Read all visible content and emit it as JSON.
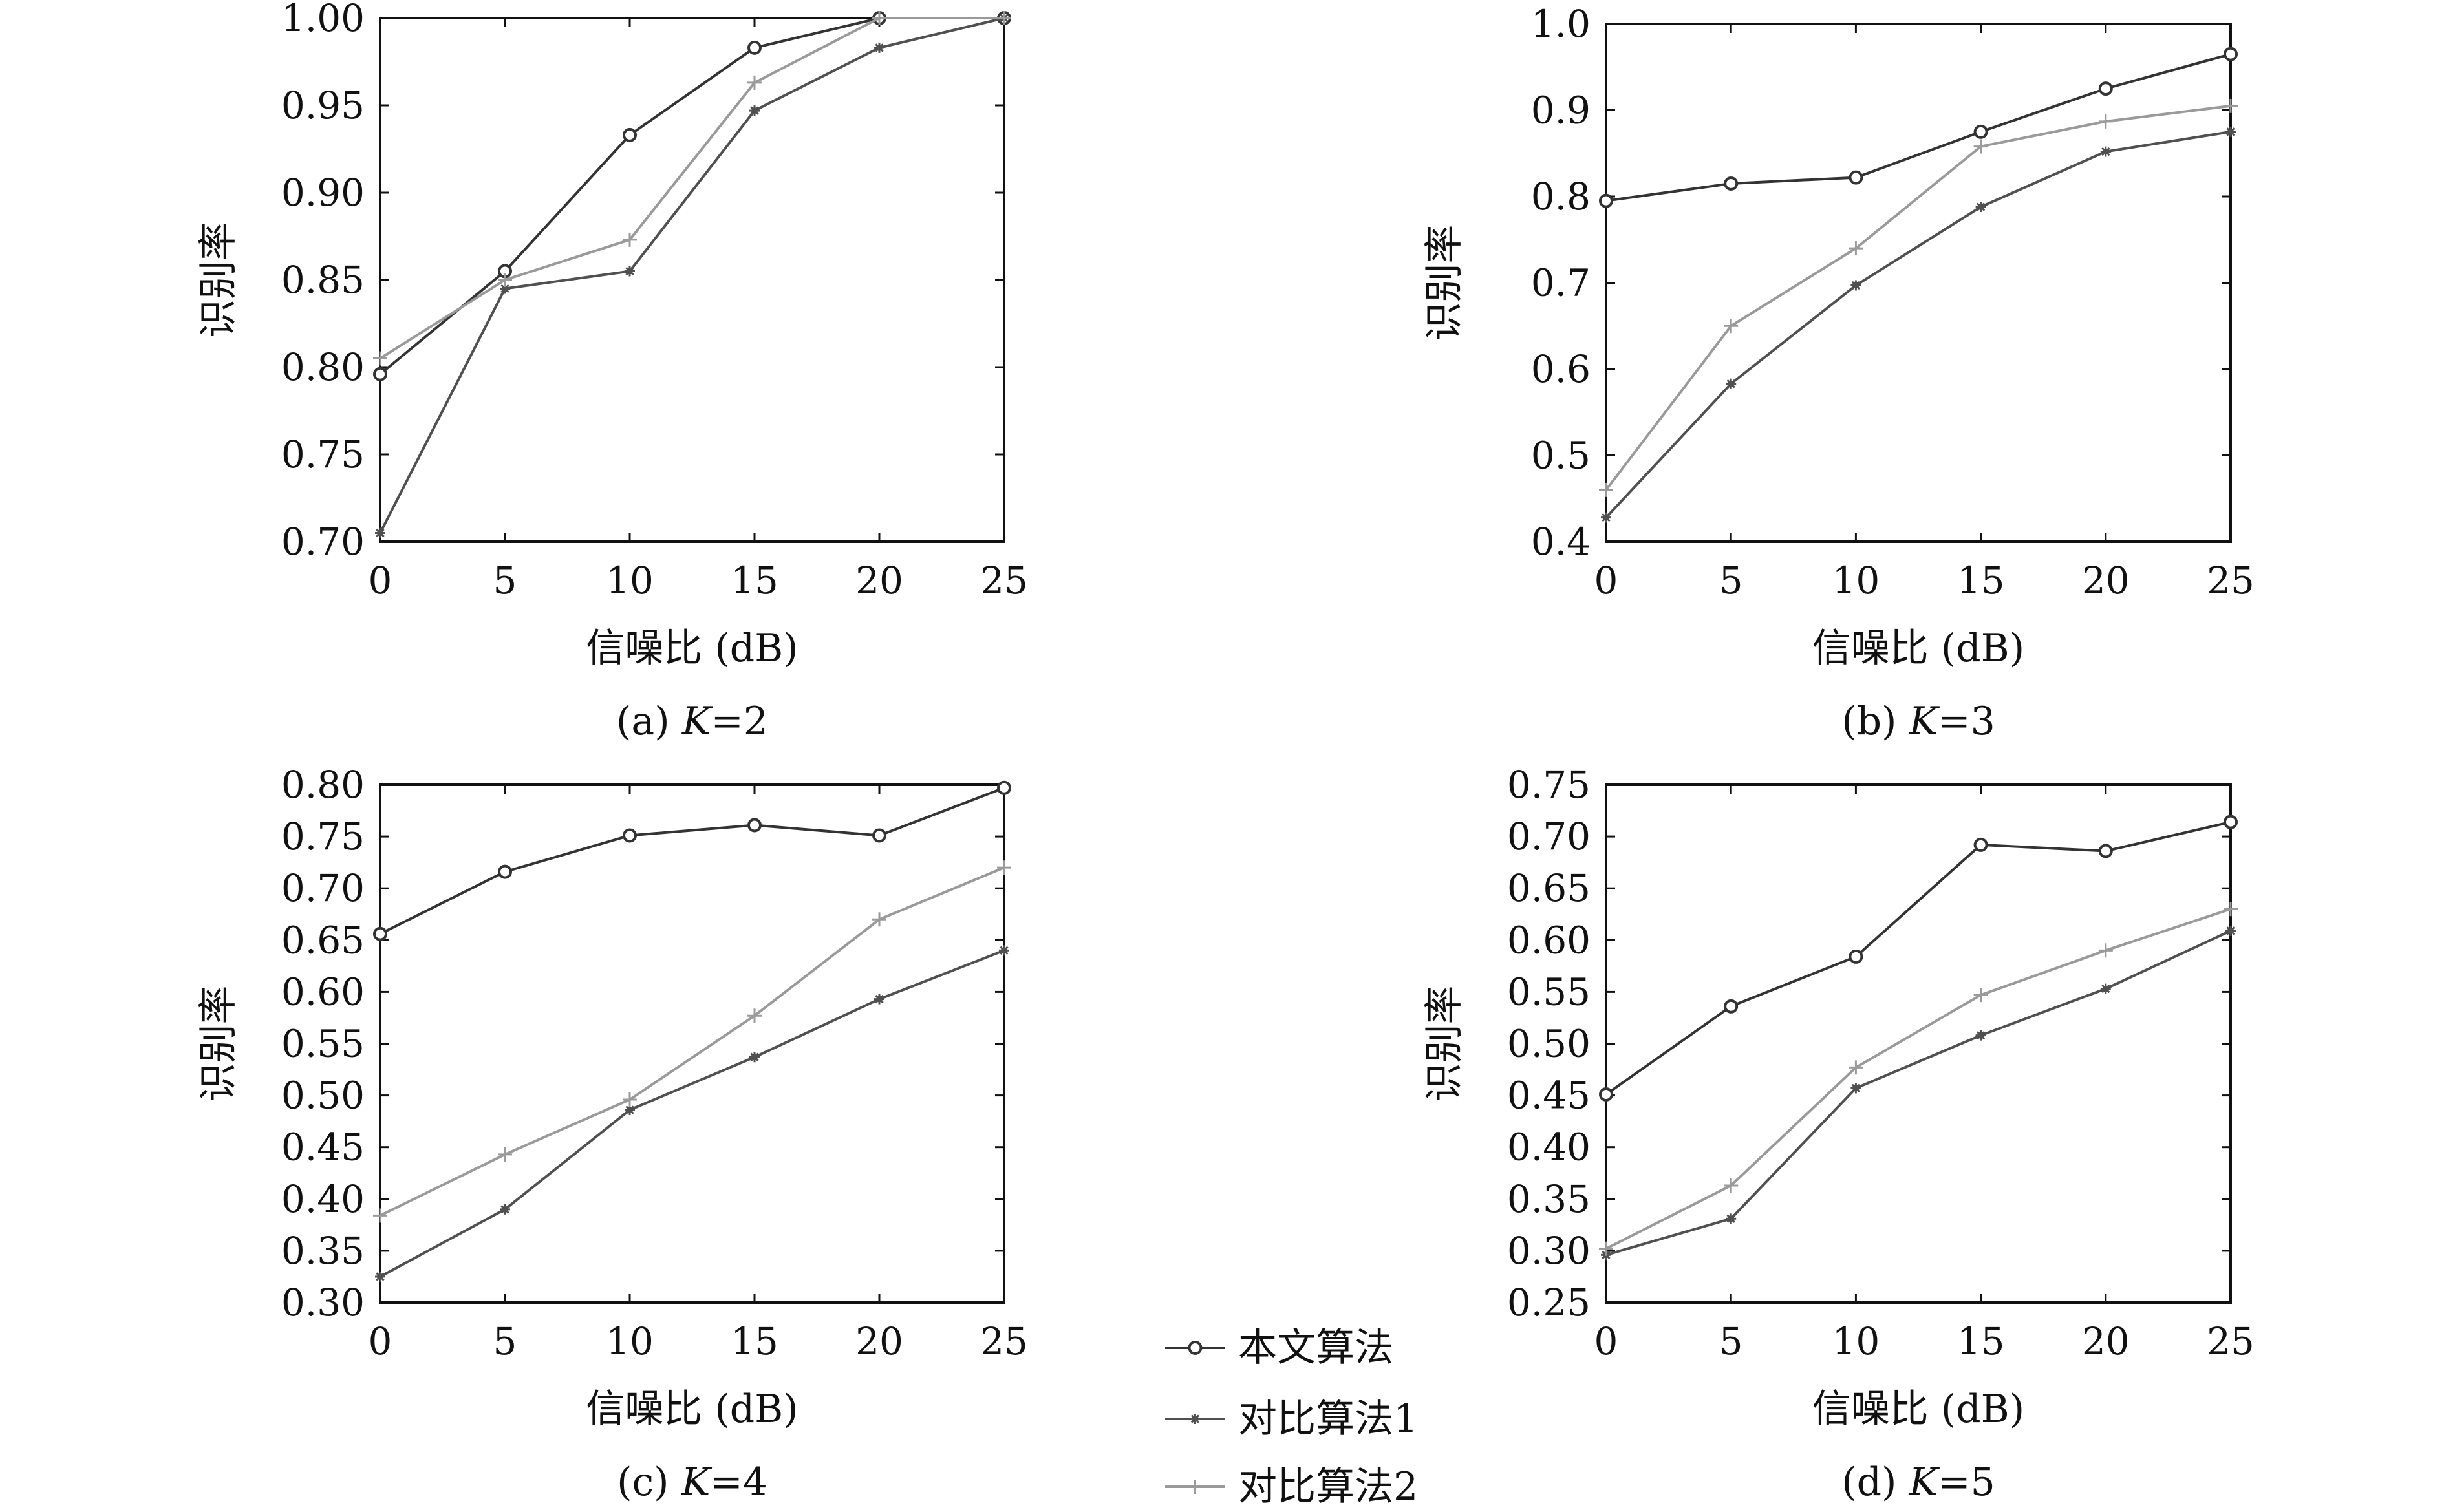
{
  "legend": {
    "entries": [
      {
        "name": "本文算法",
        "marker": "circle",
        "color": "#333333"
      },
      {
        "name": "对比算法1",
        "marker": "asterisk",
        "color": "#505050"
      },
      {
        "name": "对比算法2",
        "marker": "plus",
        "color": "#9a9a9a"
      }
    ]
  },
  "chart_data": [
    {
      "type": "line",
      "caption": "(a) K=2",
      "caption_prefix": "(a) ",
      "caption_k": "K",
      "caption_suffix": "=2",
      "xlabel": "信噪比 (dB)",
      "ylabel": "识别率",
      "x": [
        0,
        5,
        10,
        15,
        20,
        25
      ],
      "xlim": [
        0,
        25
      ],
      "ylim": [
        0.7,
        1.0
      ],
      "yticks": [
        0.7,
        0.75,
        0.8,
        0.85,
        0.9,
        0.95,
        1.0
      ],
      "ytick_labels": [
        "0.70",
        "0.75",
        "0.80",
        "0.85",
        "0.90",
        "0.95",
        "1.00"
      ],
      "xtick_labels": [
        "0",
        "5",
        "10",
        "15",
        "20",
        "25"
      ],
      "series": [
        {
          "name": "本文算法",
          "values": [
            0.796,
            0.855,
            0.933,
            0.983,
            1.0,
            1.0
          ]
        },
        {
          "name": "对比算法1",
          "values": [
            0.705,
            0.845,
            0.855,
            0.947,
            0.983,
            1.0
          ]
        },
        {
          "name": "对比算法2",
          "values": [
            0.805,
            0.85,
            0.873,
            0.963,
            1.0,
            1.0
          ]
        }
      ]
    },
    {
      "type": "line",
      "caption": "(b) K=3",
      "caption_prefix": "(b) ",
      "caption_k": "K",
      "caption_suffix": "=3",
      "xlabel": "信噪比 (dB)",
      "ylabel": "识别率",
      "x": [
        0,
        5,
        10,
        15,
        20,
        25
      ],
      "xlim": [
        0,
        25
      ],
      "ylim": [
        0.4,
        1.0
      ],
      "yticks": [
        0.4,
        0.5,
        0.6,
        0.7,
        0.8,
        0.9,
        1.0
      ],
      "ytick_labels": [
        "0.4",
        "0.5",
        "0.6",
        "0.7",
        "0.8",
        "0.9",
        "1.0"
      ],
      "xtick_labels": [
        "0",
        "5",
        "10",
        "15",
        "20",
        "25"
      ],
      "series": [
        {
          "name": "本文算法",
          "values": [
            0.795,
            0.815,
            0.822,
            0.875,
            0.925,
            0.965
          ]
        },
        {
          "name": "对比算法1",
          "values": [
            0.428,
            0.583,
            0.697,
            0.788,
            0.852,
            0.875
          ]
        },
        {
          "name": "对比算法2",
          "values": [
            0.46,
            0.65,
            0.74,
            0.858,
            0.887,
            0.905
          ]
        }
      ]
    },
    {
      "type": "line",
      "caption": "(c) K=4",
      "caption_prefix": "(c) ",
      "caption_k": "K",
      "caption_suffix": "=4",
      "xlabel": "信噪比 (dB)",
      "ylabel": "识别率",
      "x": [
        0,
        5,
        10,
        15,
        20,
        25
      ],
      "xlim": [
        0,
        25
      ],
      "ylim": [
        0.3,
        0.8
      ],
      "yticks": [
        0.3,
        0.35,
        0.4,
        0.45,
        0.5,
        0.55,
        0.6,
        0.65,
        0.7,
        0.75,
        0.8
      ],
      "ytick_labels": [
        "0.30",
        "0.35",
        "0.40",
        "0.45",
        "0.50",
        "0.55",
        "0.60",
        "0.65",
        "0.70",
        "0.75",
        "0.80"
      ],
      "xtick_labels": [
        "0",
        "5",
        "10",
        "15",
        "20",
        "25"
      ],
      "series": [
        {
          "name": "本文算法",
          "values": [
            0.656,
            0.716,
            0.751,
            0.761,
            0.751,
            0.797
          ]
        },
        {
          "name": "对比算法1",
          "values": [
            0.325,
            0.39,
            0.486,
            0.537,
            0.593,
            0.64
          ]
        },
        {
          "name": "对比算法2",
          "values": [
            0.384,
            0.443,
            0.496,
            0.577,
            0.67,
            0.72
          ]
        }
      ]
    },
    {
      "type": "line",
      "caption": "(d) K=5",
      "caption_prefix": "(d) ",
      "caption_k": "K",
      "caption_suffix": "=5",
      "xlabel": "信噪比 (dB)",
      "ylabel": "识别率",
      "x": [
        0,
        5,
        10,
        15,
        20,
        25
      ],
      "xlim": [
        0,
        25
      ],
      "ylim": [
        0.25,
        0.75
      ],
      "yticks": [
        0.25,
        0.3,
        0.35,
        0.4,
        0.45,
        0.5,
        0.55,
        0.6,
        0.65,
        0.7,
        0.75
      ],
      "ytick_labels": [
        "0.25",
        "0.30",
        "0.35",
        "0.40",
        "0.45",
        "0.50",
        "0.55",
        "0.60",
        "0.65",
        "0.70",
        "0.75"
      ],
      "xtick_labels": [
        "0",
        "5",
        "10",
        "15",
        "20",
        "25"
      ],
      "series": [
        {
          "name": "本文算法",
          "values": [
            0.451,
            0.536,
            0.584,
            0.692,
            0.686,
            0.714
          ]
        },
        {
          "name": "对比算法1",
          "values": [
            0.296,
            0.331,
            0.457,
            0.508,
            0.553,
            0.609
          ]
        },
        {
          "name": "对比算法2",
          "values": [
            0.302,
            0.363,
            0.477,
            0.547,
            0.59,
            0.63
          ]
        }
      ]
    }
  ]
}
